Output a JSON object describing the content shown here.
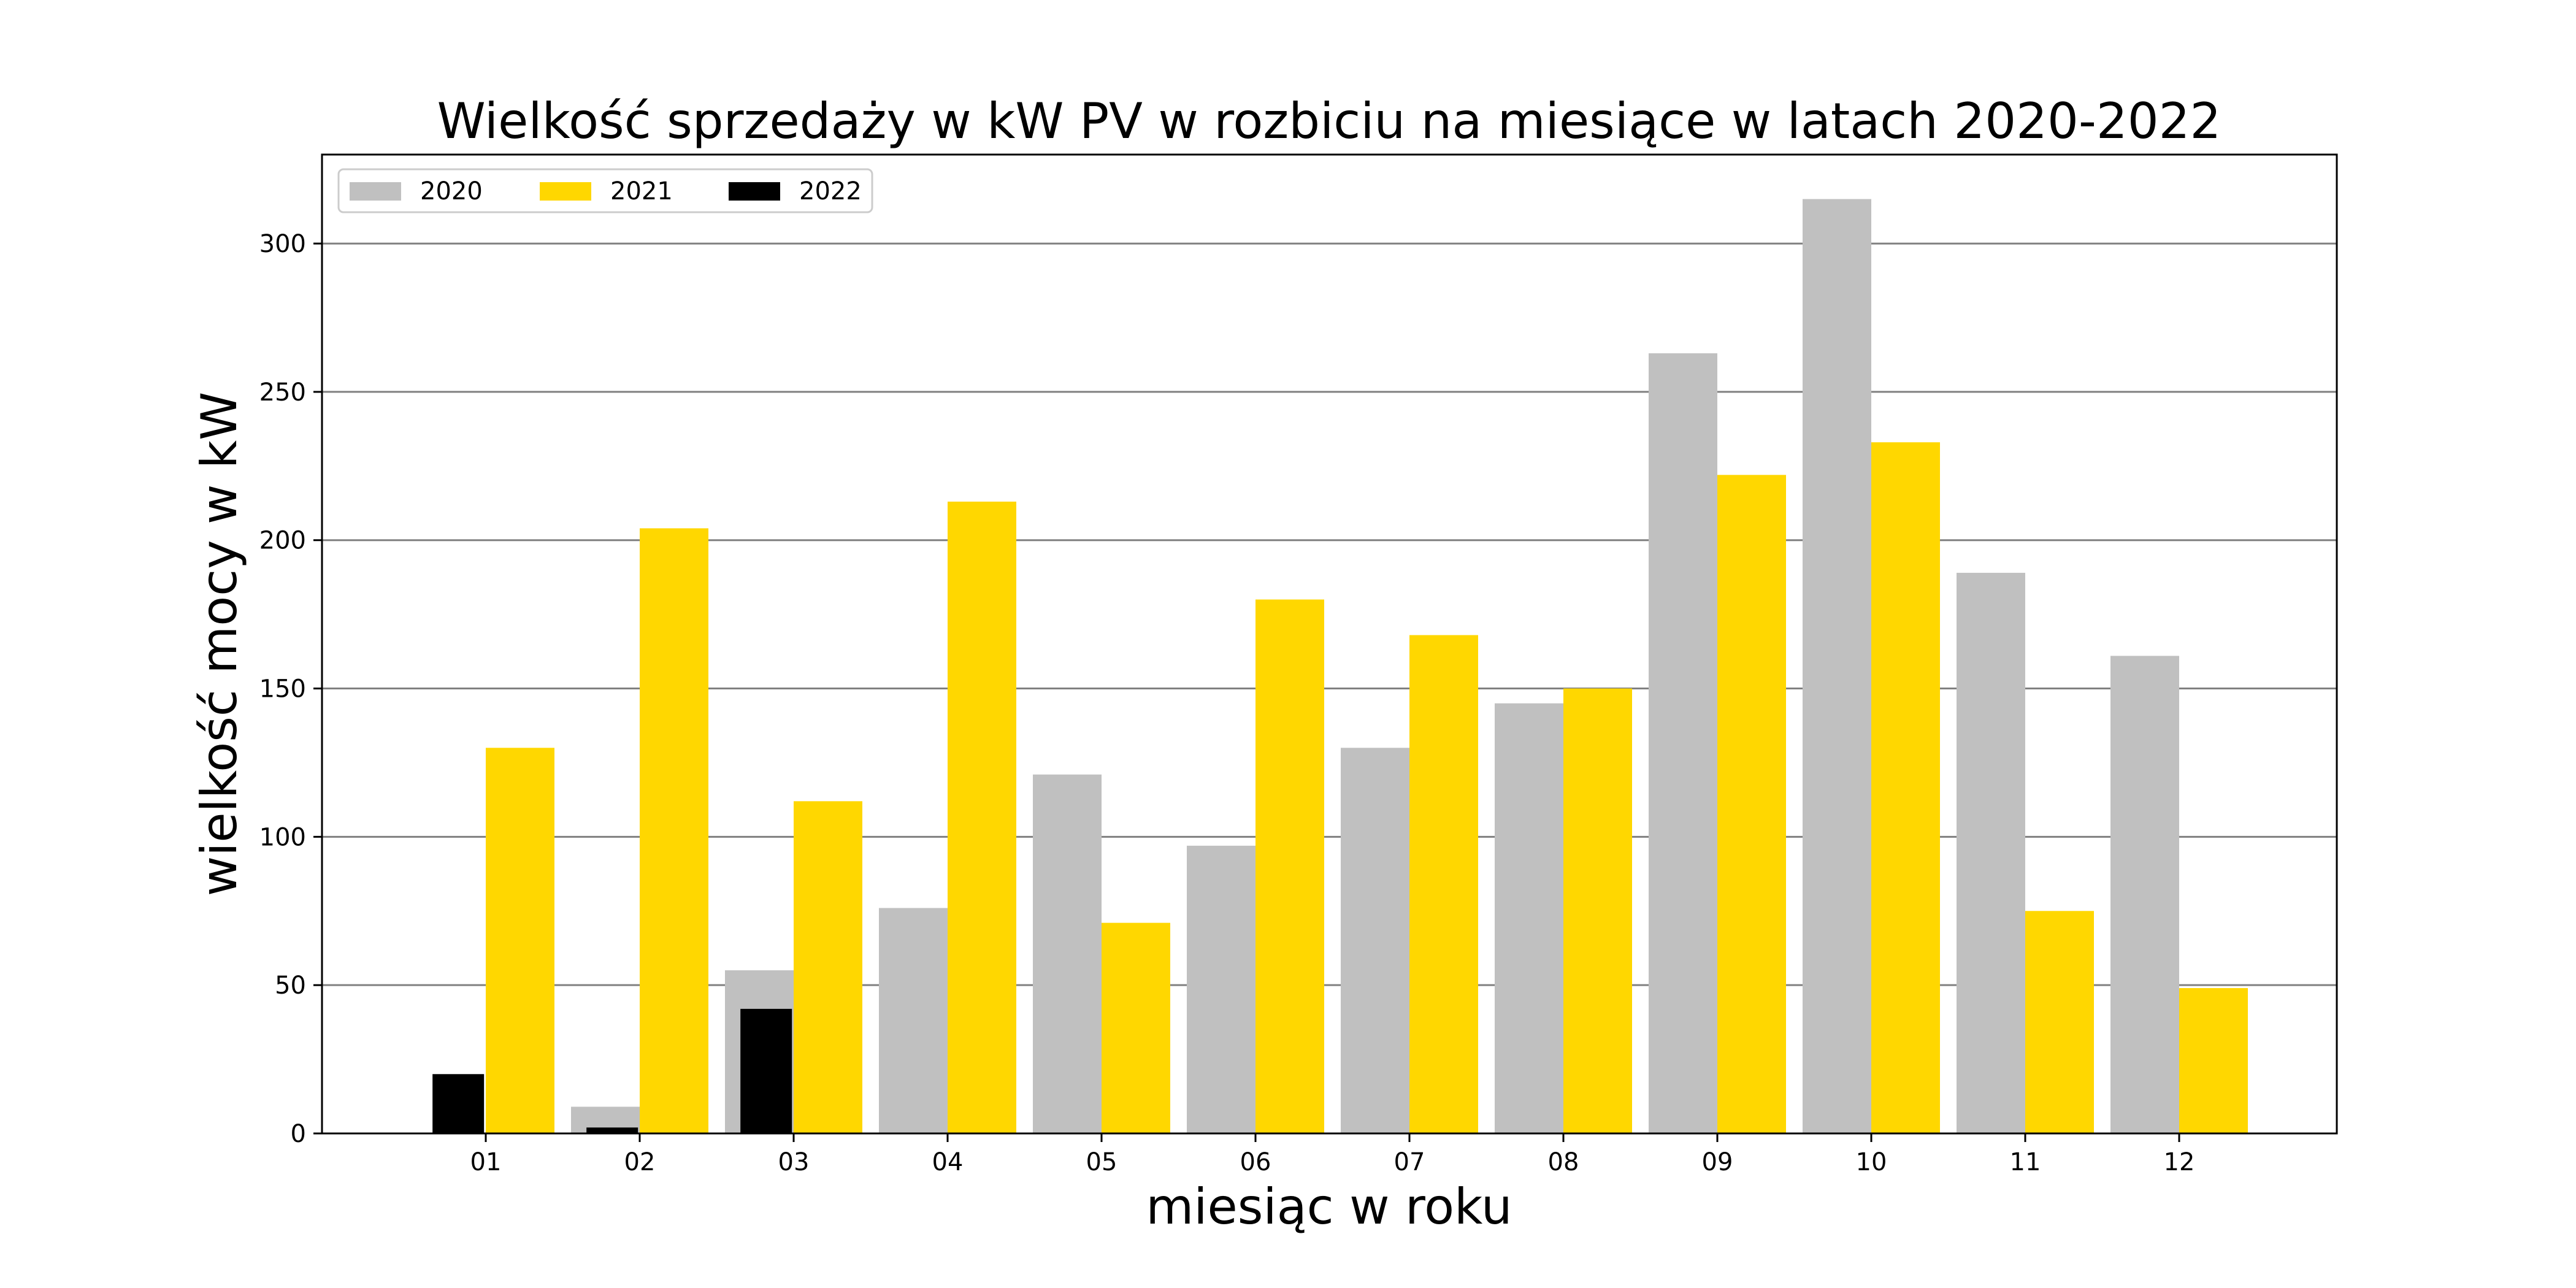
{
  "chart_data": {
    "type": "bar",
    "title": "Wielkość sprzedaży w kW PV w rozbiciu na miesiące w latach 2020-2022",
    "xlabel": "miesiąc w roku",
    "ylabel": "wielkość mocy w kW",
    "categories": [
      "01",
      "02",
      "03",
      "04",
      "05",
      "06",
      "07",
      "08",
      "09",
      "10",
      "11",
      "12"
    ],
    "ylim": [
      0,
      330
    ],
    "yticks": [
      0,
      50,
      100,
      150,
      200,
      250,
      300
    ],
    "grid": "horizontal",
    "legend": {
      "placement": "top-left",
      "columns": 3
    },
    "series": [
      {
        "name": "2020",
        "color": "#c0c0c0",
        "values": [
          0,
          9,
          55,
          76,
          121,
          97,
          130,
          145,
          263,
          315,
          189,
          161
        ]
      },
      {
        "name": "2021",
        "color": "#ffd700",
        "values": [
          130,
          204,
          112,
          213,
          71,
          180,
          168,
          150,
          222,
          233,
          75,
          49
        ]
      },
      {
        "name": "2022",
        "color": "#000000",
        "values": [
          20,
          2,
          42,
          null,
          null,
          null,
          null,
          null,
          null,
          null,
          null,
          null
        ]
      }
    ]
  }
}
